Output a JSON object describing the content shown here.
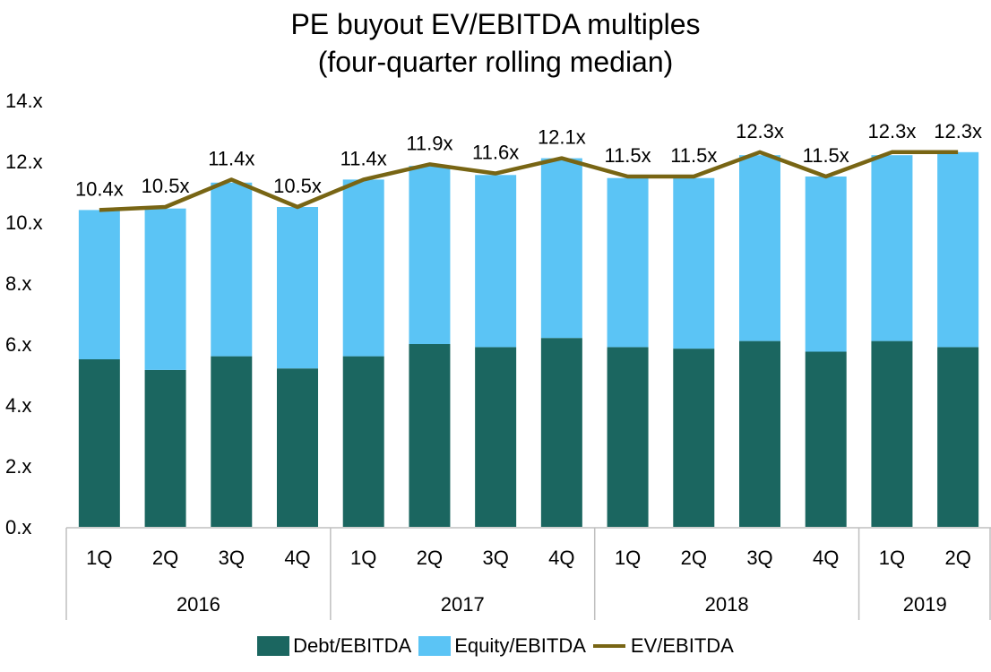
{
  "chart_data": {
    "type": "bar",
    "title": "PE buyout EV/EBITDA multiples",
    "subtitle": "(four-quarter rolling median)",
    "categories": [
      "1Q",
      "2Q",
      "3Q",
      "4Q",
      "1Q",
      "2Q",
      "3Q",
      "4Q",
      "1Q",
      "2Q",
      "3Q",
      "4Q",
      "1Q",
      "2Q"
    ],
    "groups": [
      {
        "label": "2016",
        "count": 4
      },
      {
        "label": "2017",
        "count": 4
      },
      {
        "label": "2018",
        "count": 4
      },
      {
        "label": "2019",
        "count": 2
      }
    ],
    "series": [
      {
        "name": "Debt/EBITDA",
        "kind": "bar",
        "stack": true,
        "color": "#1b6660",
        "values": [
          5.5,
          5.15,
          5.6,
          5.2,
          5.6,
          6.0,
          5.9,
          6.2,
          5.9,
          5.85,
          6.1,
          5.75,
          6.1,
          5.9
        ]
      },
      {
        "name": "Equity/EBITDA",
        "kind": "bar",
        "stack": true,
        "color": "#5bc4f5",
        "values": [
          4.9,
          5.3,
          5.7,
          5.3,
          5.8,
          5.85,
          5.65,
          5.9,
          5.55,
          5.6,
          6.1,
          5.75,
          6.1,
          6.4
        ]
      },
      {
        "name": "EV/EBITDA",
        "kind": "line",
        "color": "#786514",
        "values": [
          10.4,
          10.5,
          11.4,
          10.5,
          11.4,
          11.9,
          11.6,
          12.1,
          11.5,
          11.5,
          12.3,
          11.5,
          12.3,
          12.3
        ],
        "labels": [
          "10.4x",
          "10.5x",
          "11.4x",
          "10.5x",
          "11.4x",
          "11.9x",
          "11.6x",
          "12.1x",
          "11.5x",
          "11.5x",
          "12.3x",
          "11.5x",
          "12.3x",
          "12.3x"
        ]
      }
    ],
    "yticks": [
      0,
      2,
      4,
      6,
      8,
      10,
      12,
      14
    ],
    "ytick_labels": [
      "0.x",
      "2.x",
      "4.x",
      "6.x",
      "8.x",
      "10.x",
      "12.x",
      "14.x"
    ],
    "ylim": [
      0,
      14
    ],
    "xlabel": "",
    "ylabel": "",
    "grid": false,
    "legend_position": "bottom"
  }
}
